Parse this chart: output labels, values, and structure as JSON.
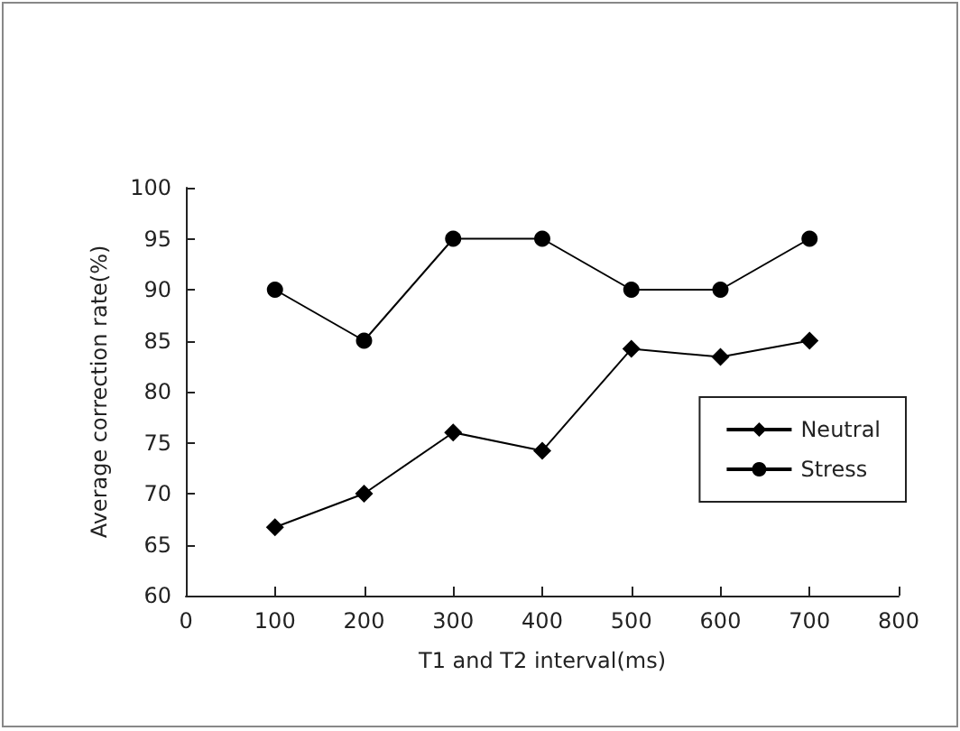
{
  "chart_data": {
    "type": "line",
    "xlabel": "T1 and T2 interval(ms)",
    "ylabel": "Average correction rate(%)",
    "x": [
      100,
      200,
      300,
      400,
      500,
      600,
      700
    ],
    "series": [
      {
        "name": "Neutral",
        "color": "#000000",
        "marker": "diamond",
        "values": [
          66.7,
          70,
          76,
          74.2,
          84.2,
          83.4,
          85
        ]
      },
      {
        "name": "Stress",
        "color": "#000000",
        "marker": "circle",
        "values": [
          90,
          85,
          95,
          95,
          90,
          90,
          95
        ]
      }
    ],
    "xlim": [
      0,
      800
    ],
    "xticks": [
      0,
      100,
      200,
      300,
      400,
      500,
      600,
      700,
      800
    ],
    "ylim": [
      60,
      100
    ],
    "yticks": [
      60,
      65,
      70,
      75,
      80,
      85,
      90,
      95,
      100
    ],
    "grid": false,
    "legend": "right",
    "line_style": "solid"
  }
}
